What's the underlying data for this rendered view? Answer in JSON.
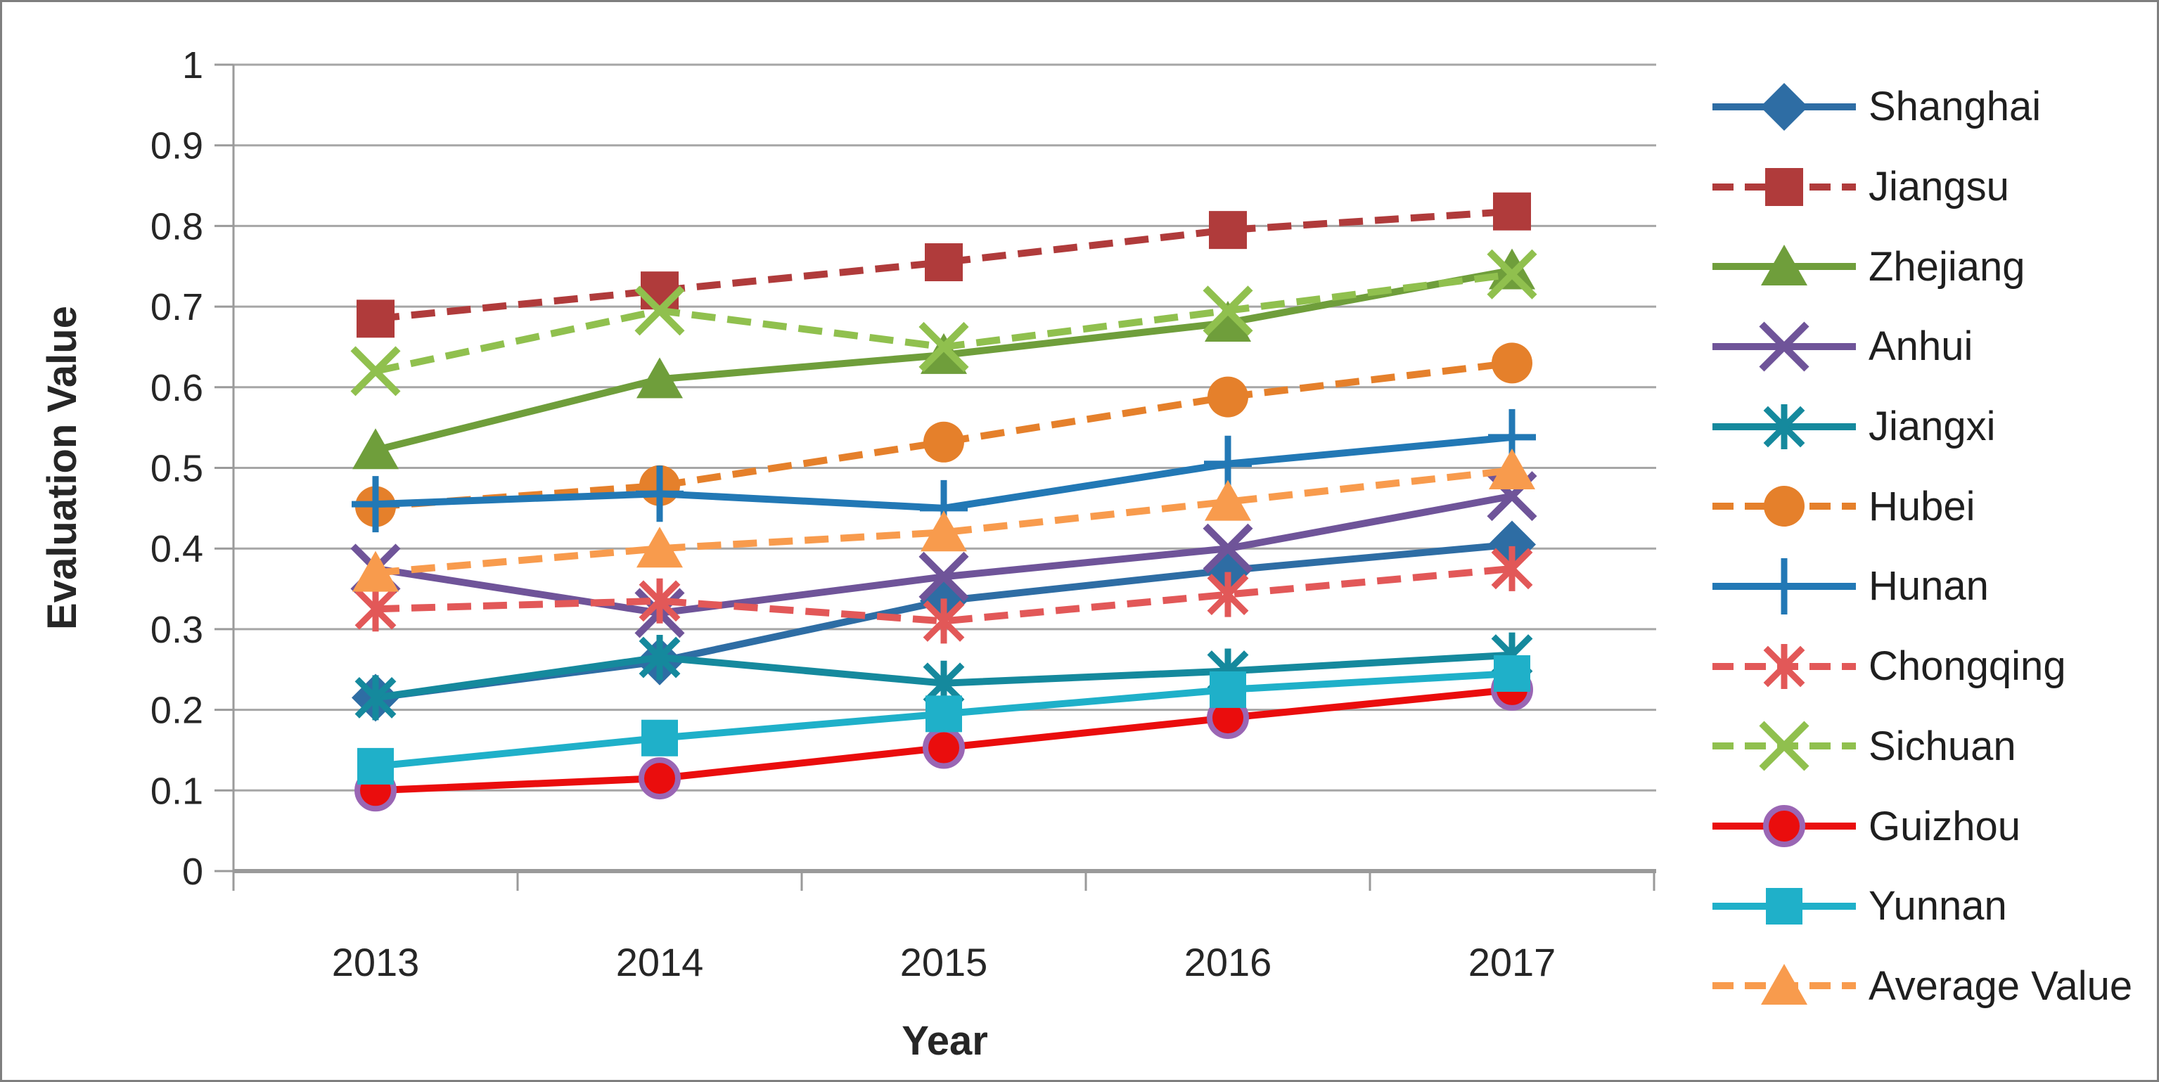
{
  "figure": {
    "background": "#FFFFFF",
    "border_color": "#7F7F7F",
    "grid_color": "#A6A6A6",
    "axis_line_color": "#9A9A9A",
    "text_color": "#262626"
  },
  "axes": {
    "y": {
      "title": "Evaluation Value",
      "min": 0,
      "max": 1,
      "step": 0.1,
      "tick_labels": [
        "0",
        "0.1",
        "0.2",
        "0.3",
        "0.4",
        "0.5",
        "0.6",
        "0.7",
        "0.8",
        "0.9",
        "1"
      ]
    },
    "x": {
      "title": "Year",
      "categories": [
        "2013",
        "2014",
        "2015",
        "2016",
        "2017"
      ]
    }
  },
  "chart_data": {
    "type": "line",
    "title": "",
    "xlabel": "Year",
    "ylabel": "Evaluation Value",
    "x": [
      "2013",
      "2014",
      "2015",
      "2016",
      "2017"
    ],
    "ylim": [
      0,
      1
    ],
    "grid": true,
    "legend_position": "right",
    "series": [
      {
        "name": "Shanghai",
        "color": "#2E6DA4",
        "dash": false,
        "marker": "diamond",
        "size": 34,
        "values": [
          0.215,
          0.26,
          0.335,
          0.373,
          0.405
        ]
      },
      {
        "name": "Jiangsu",
        "color": "#B03B3B",
        "dash": true,
        "marker": "square",
        "size": 27,
        "values": [
          0.685,
          0.72,
          0.755,
          0.795,
          0.818
        ]
      },
      {
        "name": "Zhejiang",
        "color": "#6F9E3B",
        "dash": false,
        "marker": "triangle",
        "size": 31,
        "values": [
          0.522,
          0.61,
          0.64,
          0.68,
          0.745
        ]
      },
      {
        "name": "Anhui",
        "color": "#6F5499",
        "dash": false,
        "marker": "x",
        "size": 32,
        "values": [
          0.375,
          0.32,
          0.365,
          0.4,
          0.465
        ]
      },
      {
        "name": "Jiangxi",
        "color": "#15899D",
        "dash": false,
        "marker": "asterisk",
        "size": 32,
        "values": [
          0.215,
          0.265,
          0.233,
          0.248,
          0.268
        ]
      },
      {
        "name": "Hubei",
        "color": "#E5802B",
        "dash": true,
        "marker": "circle",
        "size": 29,
        "values": [
          0.452,
          0.478,
          0.532,
          0.588,
          0.63
        ]
      },
      {
        "name": "Hunan",
        "color": "#2278B5",
        "dash": false,
        "marker": "plus",
        "size": 34,
        "values": [
          0.455,
          0.468,
          0.45,
          0.505,
          0.538
        ]
      },
      {
        "name": "Chongqing",
        "color": "#E25858",
        "dash": true,
        "marker": "asterisk",
        "size": 32,
        "values": [
          0.325,
          0.335,
          0.31,
          0.343,
          0.375
        ]
      },
      {
        "name": "Sichuan",
        "color": "#90C04E",
        "dash": true,
        "marker": "x",
        "size": 32,
        "values": [
          0.62,
          0.695,
          0.65,
          0.695,
          0.74
        ]
      },
      {
        "name": "Guizhou",
        "color": "#EA0D0D",
        "dash": false,
        "marker": "circle-ring",
        "size": 26,
        "ring_color": "#9A66B4",
        "values": [
          0.1,
          0.115,
          0.153,
          0.19,
          0.225
        ]
      },
      {
        "name": "Yunnan",
        "color": "#1FB0C9",
        "dash": false,
        "marker": "square",
        "size": 26,
        "values": [
          0.13,
          0.165,
          0.195,
          0.225,
          0.245
        ]
      },
      {
        "name": "Average Value",
        "color": "#F89B4D",
        "dash": true,
        "marker": "triangle",
        "size": 31,
        "values": [
          0.37,
          0.4,
          0.42,
          0.458,
          0.497
        ]
      }
    ]
  },
  "legend": {
    "items": [
      "Shanghai",
      "Jiangsu",
      "Zhejiang",
      "Anhui",
      "Jiangxi",
      "Hubei",
      "Hunan",
      "Chongqing",
      "Sichuan",
      "Guizhou",
      "Yunnan",
      "Average Value"
    ]
  }
}
